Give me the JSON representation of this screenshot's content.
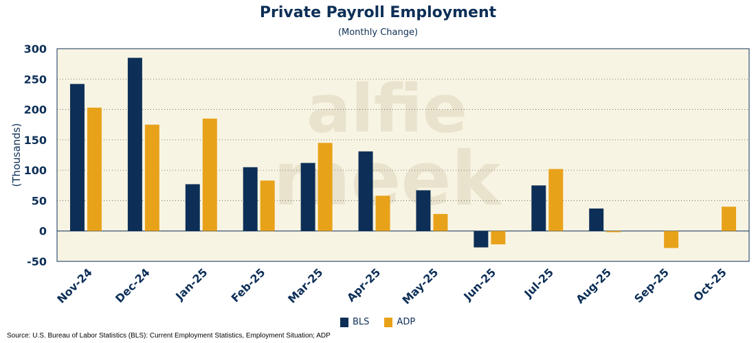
{
  "chart_data": {
    "type": "bar",
    "title": "Private Payroll Employment",
    "subtitle": "(Monthly Change)",
    "ylabel": "(Thousands)",
    "xlabel": "",
    "ylim": [
      -50,
      300
    ],
    "yticks": [
      300,
      250,
      200,
      150,
      100,
      50,
      0,
      -50
    ],
    "categories": [
      "Nov-24",
      "Dec-24",
      "Jan-25",
      "Feb-25",
      "Mar-25",
      "Apr-25",
      "May-25",
      "Jun-25",
      "Jul-25",
      "Aug-25",
      "Sep-25",
      "Oct-25"
    ],
    "series": [
      {
        "name": "BLS",
        "color": "#0d2f57",
        "values": [
          242,
          285,
          77,
          105,
          112,
          131,
          67,
          -27,
          75,
          37,
          null,
          null
        ]
      },
      {
        "name": "ADP",
        "color": "#e8a21a",
        "values": [
          203,
          175,
          185,
          83,
          145,
          58,
          28,
          -22,
          102,
          -2,
          -28,
          40
        ]
      }
    ],
    "watermark": "alfie meek",
    "grid": true,
    "legend_position": "bottom-center"
  },
  "source_text": "Source: U.S. Bureau of Labor Statistics (BLS): Current Employment Statistics, Employment Situation; ADP"
}
